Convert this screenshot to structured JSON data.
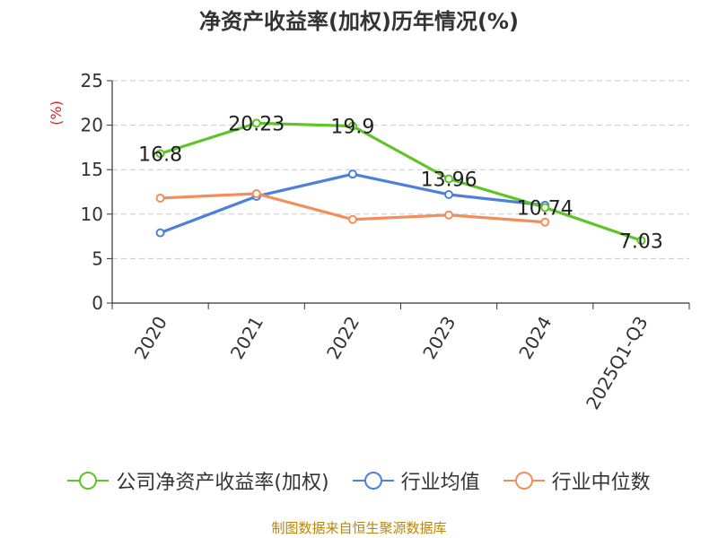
{
  "chart_data": {
    "type": "line",
    "title": "净资产收益率(加权)历年情况(%)",
    "ylabel": "(%)",
    "xlabel": "",
    "categories": [
      "2020",
      "2021",
      "2022",
      "2023",
      "2024",
      "2025Q1-Q3"
    ],
    "ylim": [
      0,
      25
    ],
    "yticks": [
      0,
      5,
      10,
      15,
      20,
      25
    ],
    "grid": true,
    "legend_position": "bottom",
    "series": [
      {
        "name": "公司净资产收益率(加权)",
        "color": "#5ec427",
        "values": [
          16.8,
          20.23,
          19.9,
          13.96,
          10.74,
          7.03
        ],
        "labels": [
          "16.8",
          "20.23",
          "19.9",
          "13.96",
          "10.74",
          "7.03"
        ]
      },
      {
        "name": "行业均值",
        "color": "#4e7fd9",
        "values": [
          7.9,
          12.0,
          14.5,
          12.2,
          11.0,
          null
        ]
      },
      {
        "name": "行业中位数",
        "color": "#f38e5b",
        "values": [
          11.8,
          12.3,
          9.4,
          9.9,
          9.1,
          null
        ]
      }
    ]
  },
  "source": "制图数据来自恒生聚源数据库"
}
